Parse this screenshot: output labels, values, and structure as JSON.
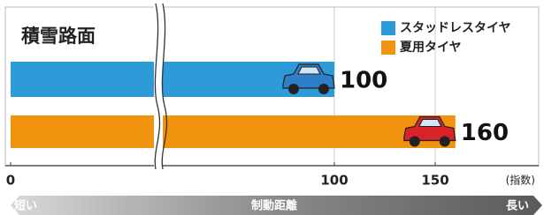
{
  "chart_data": {
    "type": "bar",
    "orientation": "horizontal",
    "title": "積雪路面",
    "categories": [
      null
    ],
    "series": [
      {
        "name": "スタッドレスタイヤ",
        "color": "#2f9ad8",
        "values": [
          100
        ]
      },
      {
        "name": "夏用タイヤ",
        "color": "#f0930f",
        "values": [
          160
        ]
      }
    ],
    "xlim": [
      0,
      175
    ],
    "xticks": [
      0,
      100,
      150
    ],
    "xlabel": "(指数)",
    "axis_break": true,
    "grid": true,
    "legend": "top-right",
    "annotations": [
      "短い",
      "制動距離",
      "長い"
    ]
  }
}
